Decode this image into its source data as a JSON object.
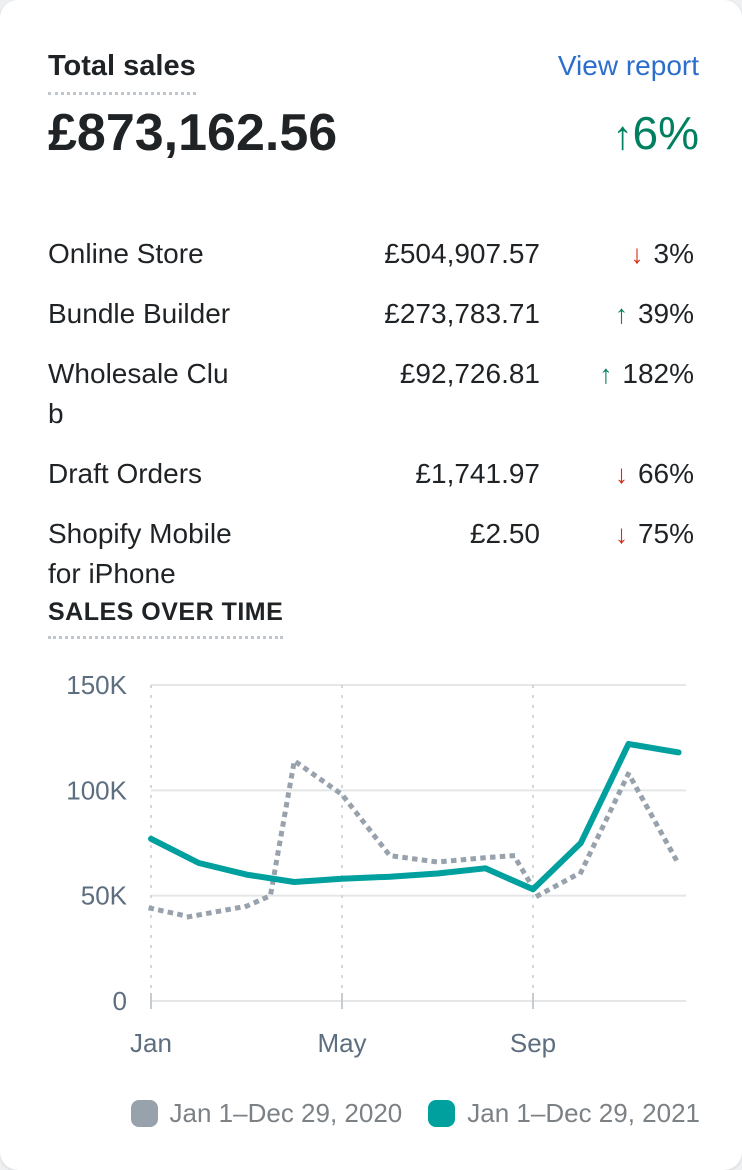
{
  "card": {
    "title": "Total sales",
    "view_report": "View report",
    "total": {
      "value": "£873,162.56",
      "arrow": "↑",
      "pct": "6%",
      "direction": "up"
    },
    "rows": [
      {
        "label": "Online Store",
        "value": "£504,907.57",
        "direction": "down",
        "pct": "3%"
      },
      {
        "label": "Bundle Builder",
        "value": "£273,783.71",
        "direction": "up",
        "pct": "39%"
      },
      {
        "label": "Wholesale Club",
        "value": "£92,726.81",
        "direction": "up",
        "pct": "182%"
      },
      {
        "label": "Draft Orders",
        "value": "£1,741.97",
        "direction": "down",
        "pct": "66%"
      },
      {
        "label": "Shopify Mobile for iPhone",
        "value": "£2.50",
        "direction": "down",
        "pct": "75%"
      }
    ],
    "section_title": "SALES OVER TIME"
  },
  "glyphs": {
    "up": "↑",
    "down": "↓"
  },
  "colors": {
    "text_primary": "#1f2326",
    "link_blue": "#2c6ecb",
    "positive_green": "#008060",
    "negative_red": "#d72c0d",
    "series_2021_teal": "#00a09e",
    "series_2020_gray": "#98a2ad",
    "grid_line": "#e4e6e8",
    "grid_dashed": "#d3d7dc",
    "axis_text": "#5d6e80",
    "legend_text": "#7c8185"
  },
  "chart_data": {
    "type": "line",
    "title": "SALES OVER TIME",
    "unit": "GBP (thousands)",
    "grid": true,
    "legend_position": "bottom-right",
    "x_axis": {
      "range_months": [
        0,
        11.2
      ],
      "ticks": [
        {
          "m": 0,
          "label": "Jan"
        },
        {
          "m": 4,
          "label": "May"
        },
        {
          "m": 8,
          "label": "Sep"
        }
      ]
    },
    "y_axis": {
      "range": [
        0,
        150
      ],
      "ticks": [
        {
          "v": 0,
          "label": "0"
        },
        {
          "v": 50,
          "label": "50K"
        },
        {
          "v": 100,
          "label": "100K"
        },
        {
          "v": 150,
          "label": "150K"
        }
      ]
    },
    "series": [
      {
        "name": "Jan 1–Dec 29, 2020",
        "style": "dotted",
        "marker": "rounded-square",
        "color": "#98a2ad",
        "points": [
          [
            0,
            44
          ],
          [
            0.8,
            40
          ],
          [
            2,
            45
          ],
          [
            2.5,
            50
          ],
          [
            3,
            114
          ],
          [
            4,
            98
          ],
          [
            5,
            69
          ],
          [
            6,
            66
          ],
          [
            7,
            68
          ],
          [
            7.6,
            69
          ],
          [
            8.1,
            50
          ],
          [
            9,
            61
          ],
          [
            10,
            108
          ],
          [
            11.05,
            65
          ]
        ]
      },
      {
        "name": "Jan 1–Dec 29, 2021",
        "style": "solid",
        "marker": "rounded-square",
        "color": "#00a09e",
        "points": [
          [
            0,
            77
          ],
          [
            1,
            65.5
          ],
          [
            2,
            60
          ],
          [
            3,
            56.5
          ],
          [
            4,
            58
          ],
          [
            5,
            59
          ],
          [
            6,
            60.5
          ],
          [
            7,
            63
          ],
          [
            8,
            53
          ],
          [
            9,
            75
          ],
          [
            10,
            122
          ],
          [
            11.05,
            118
          ]
        ]
      }
    ]
  }
}
